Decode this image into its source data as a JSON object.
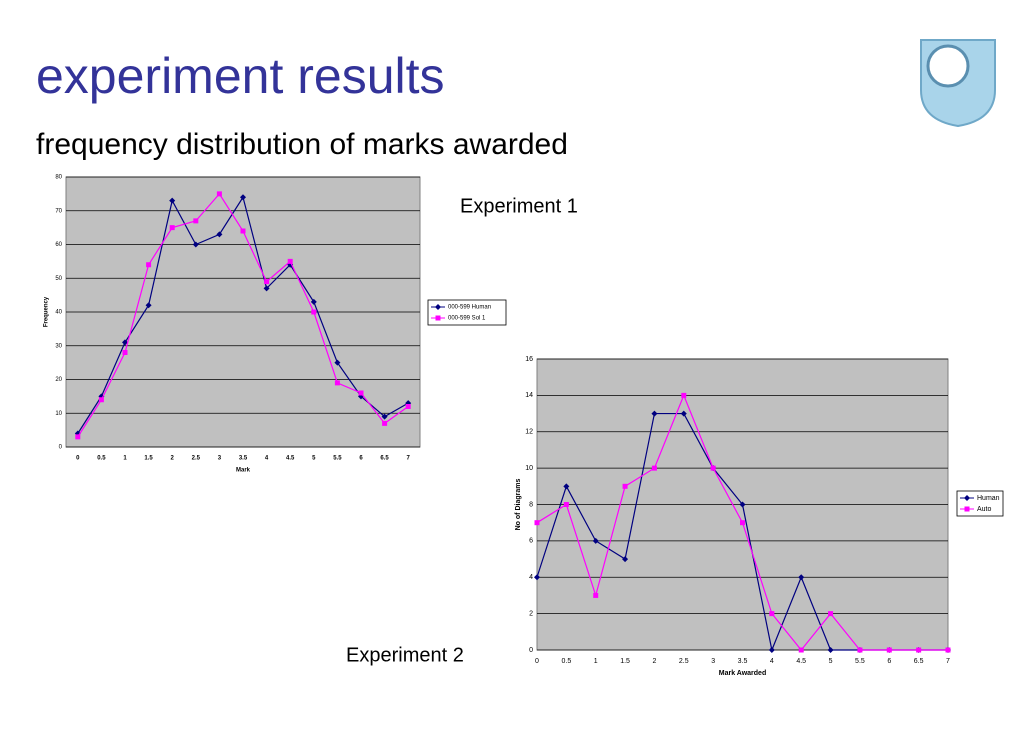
{
  "title": "experiment results",
  "subtitle": "frequency distribution of marks awarded",
  "chart_data": [
    {
      "type": "line",
      "annotation": "Experiment 1",
      "xlabel": "Mark",
      "ylabel": "Frequency",
      "categories": [
        "0",
        "0.5",
        "1",
        "1.5",
        "2",
        "2.5",
        "3",
        "3.5",
        "4",
        "4.5",
        "5",
        "5.5",
        "6",
        "6.5",
        "7"
      ],
      "series": [
        {
          "name": "000-599 Human",
          "color": "#000080",
          "marker": "diamond",
          "values": [
            4,
            15,
            31,
            42,
            73,
            60,
            63,
            74,
            47,
            54,
            43,
            25,
            15,
            9,
            13
          ]
        },
        {
          "name": "000-599 Sol 1",
          "color": "#ff00ff",
          "marker": "square",
          "values": [
            3,
            14,
            28,
            54,
            65,
            67,
            75,
            64,
            49,
            55,
            40,
            19,
            16,
            7,
            12
          ]
        }
      ],
      "ylim": [
        0,
        80
      ],
      "yticks": [
        0,
        10,
        20,
        30,
        40,
        50,
        60,
        70,
        80
      ],
      "grid": true,
      "legend": "right"
    },
    {
      "type": "line",
      "annotation": "Experiment 2",
      "xlabel": "Mark Awarded",
      "ylabel": "No of Diagrams",
      "categories": [
        "0",
        "0.5",
        "1",
        "1.5",
        "2",
        "2.5",
        "3",
        "3.5",
        "4",
        "4.5",
        "5",
        "5.5",
        "6",
        "6.5",
        "7"
      ],
      "series": [
        {
          "name": "Human",
          "color": "#000080",
          "marker": "diamond",
          "values": [
            4,
            9,
            6,
            5,
            13,
            13,
            10,
            8,
            0,
            4,
            0,
            0,
            0,
            0,
            0
          ]
        },
        {
          "name": "Auto",
          "color": "#ff00ff",
          "marker": "square",
          "values": [
            7,
            8,
            3,
            9,
            10,
            14,
            10,
            7,
            2,
            0,
            2,
            0,
            0,
            0,
            0
          ]
        }
      ],
      "ylim": [
        0,
        16
      ],
      "yticks": [
        0,
        2,
        4,
        6,
        8,
        10,
        12,
        14,
        16
      ],
      "grid": true,
      "legend": "right"
    }
  ]
}
